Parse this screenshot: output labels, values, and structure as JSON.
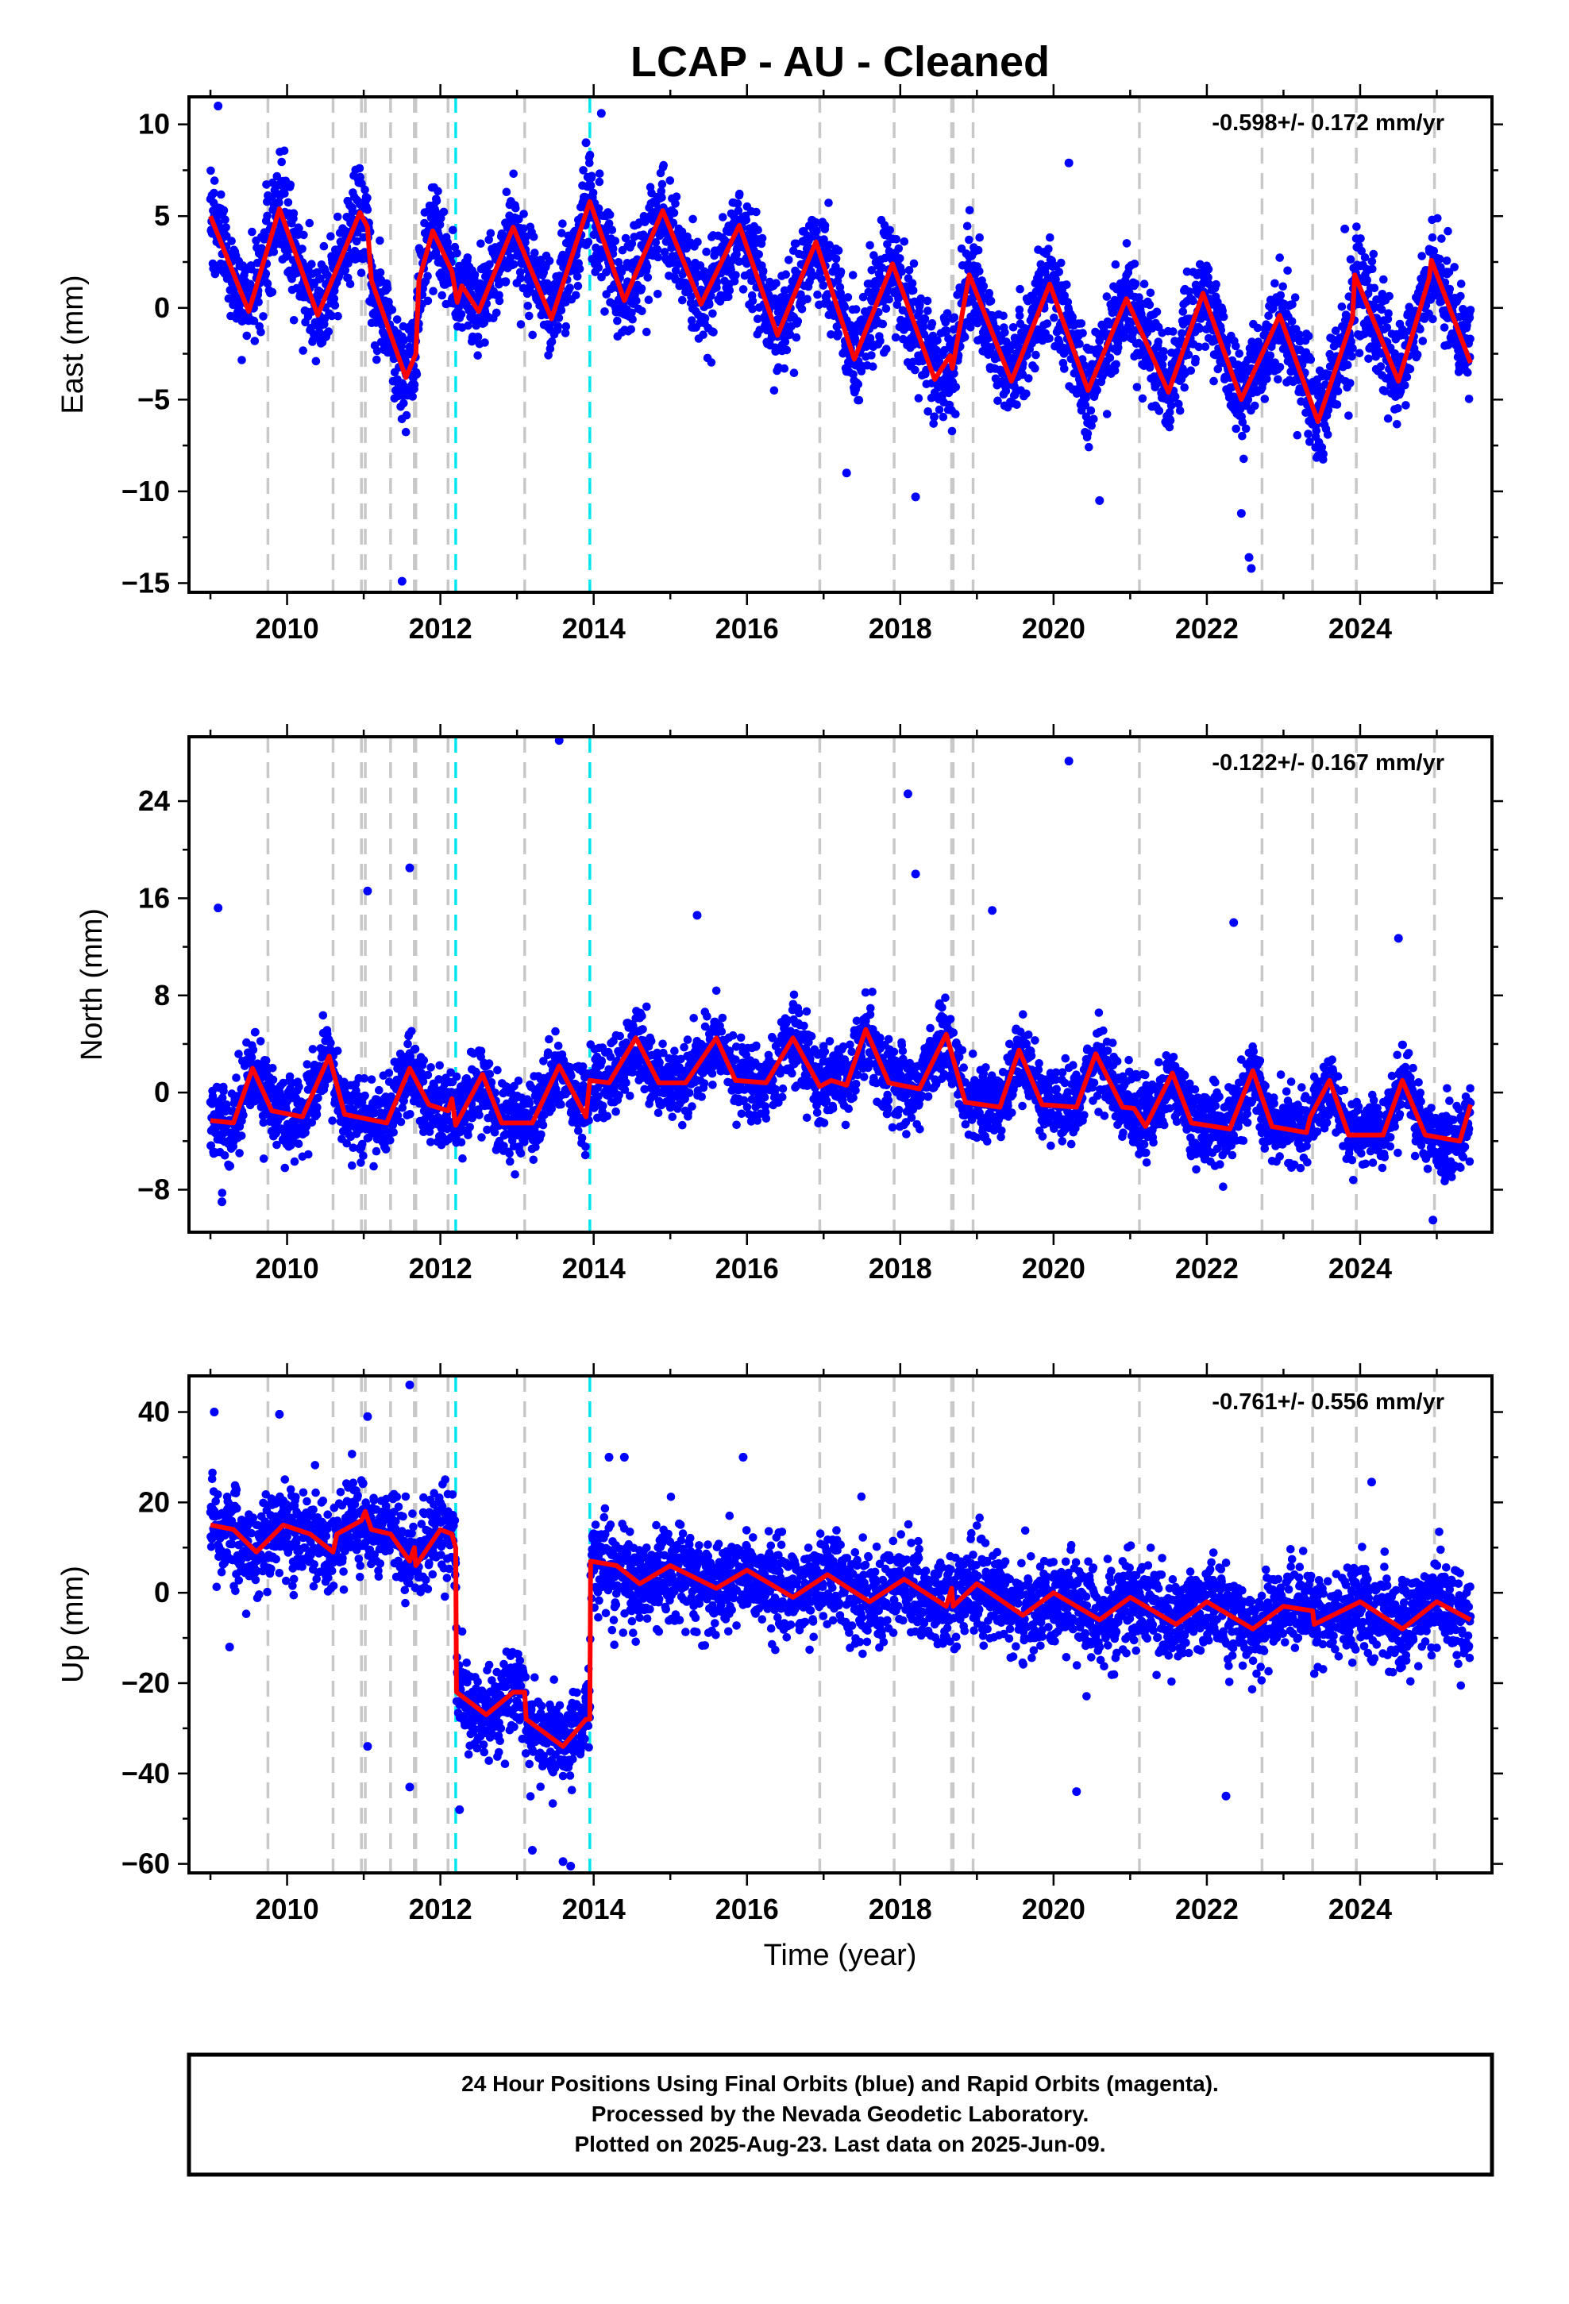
{
  "figure": {
    "title": "LCAP  - AU - Cleaned",
    "xlabel": "Time (year)",
    "footer": [
      "24 Hour Positions Using Final Orbits (blue) and Rapid Orbits (magenta).",
      "Processed by the Nevada Geodetic Laboratory.",
      "Plotted on 2025-Aug-23. Last data on 2025-Jun-09."
    ],
    "colors": {
      "observations": "#0000ff",
      "model": "#ff0000",
      "equipment_change": "#c8c8c8",
      "earthquake": "#00e5ee"
    }
  },
  "chart_data": [
    {
      "type": "scatter",
      "component": "East",
      "ylabel": "East (mm)",
      "rate_annotation": "-0.598+/- 0.172 mm/yr",
      "xlim": [
        2008.72,
        2025.72
      ],
      "ylim": [
        -15.5,
        11.5
      ],
      "x_ticks": [
        2010,
        2012,
        2014,
        2016,
        2018,
        2020,
        2022,
        2024
      ],
      "y_ticks": [
        10,
        5,
        0,
        -5,
        -10,
        -15
      ],
      "y_tick_labels": [
        "10",
        "5",
        "0",
        "−5",
        "−10",
        "−15"
      ],
      "grid": false,
      "series": [
        {
          "name": "Final Orbits (blue)",
          "kind": "daily_positions",
          "x_range": [
            2009.0,
            2025.44
          ],
          "model_params": {
            "offset": 4.4,
            "rate": -0.598,
            "annual_amplitude": 2.9,
            "phase_peak": 0.86,
            "scatter_sigma": 1.35
          },
          "outliers": [
            [
              2009.1,
              11.0
            ],
            [
              2011.5,
              -14.9
            ],
            [
              2013.9,
              9.0
            ],
            [
              2014.1,
              10.6
            ],
            [
              2017.3,
              -9.0
            ],
            [
              2018.2,
              -10.3
            ],
            [
              2020.2,
              7.9
            ],
            [
              2020.6,
              -10.5
            ],
            [
              2022.45,
              -11.2
            ],
            [
              2022.55,
              -13.6
            ],
            [
              2022.58,
              -14.2
            ],
            [
              2023.8,
              4.3
            ]
          ]
        },
        {
          "name": "Model",
          "kind": "model",
          "points": [
            [
              2009.0,
              5.0
            ],
            [
              2009.5,
              -0.2
            ],
            [
              2009.9,
              5.4
            ],
            [
              2010.4,
              -0.4
            ],
            [
              2010.95,
              5.2
            ],
            [
              2011.05,
              4.4
            ],
            [
              2011.1,
              1.5
            ],
            [
              2011.55,
              -3.8
            ],
            [
              2011.68,
              -2.5
            ],
            [
              2011.72,
              1.5
            ],
            [
              2011.9,
              4.2
            ],
            [
              2012.15,
              2.0
            ],
            [
              2012.22,
              0.3
            ],
            [
              2012.28,
              1.2
            ],
            [
              2012.5,
              -0.2
            ],
            [
              2012.95,
              4.4
            ],
            [
              2013.45,
              -0.6
            ],
            [
              2013.95,
              5.8
            ],
            [
              2014.4,
              0.4
            ],
            [
              2014.9,
              5.3
            ],
            [
              2015.4,
              0.2
            ],
            [
              2015.9,
              4.5
            ],
            [
              2016.4,
              -1.5
            ],
            [
              2016.9,
              3.6
            ],
            [
              2017.4,
              -2.8
            ],
            [
              2017.9,
              2.4
            ],
            [
              2018.45,
              -3.9
            ],
            [
              2018.65,
              -2.6
            ],
            [
              2018.68,
              -3.3
            ],
            [
              2018.9,
              1.8
            ],
            [
              2019.45,
              -4.0
            ],
            [
              2019.95,
              1.3
            ],
            [
              2020.45,
              -4.5
            ],
            [
              2020.95,
              0.5
            ],
            [
              2021.5,
              -4.6
            ],
            [
              2021.95,
              0.8
            ],
            [
              2022.45,
              -5.0
            ],
            [
              2022.95,
              -0.4
            ],
            [
              2023.45,
              -6.2
            ],
            [
              2023.9,
              -0.6
            ],
            [
              2023.93,
              1.8
            ],
            [
              2024.5,
              -4.0
            ],
            [
              2024.9,
              1.6
            ],
            [
              2024.93,
              2.6
            ],
            [
              2025.44,
              -3.0
            ]
          ]
        }
      ],
      "equipment_changes": [
        2009.75,
        2010.6,
        2010.97,
        2011.02,
        2011.35,
        2011.66,
        2011.68,
        2012.1,
        2013.1,
        2016.95,
        2017.92,
        2018.67,
        2018.69,
        2018.95,
        2021.12,
        2022.72,
        2023.38,
        2023.95,
        2024.97
      ],
      "earthquakes": [
        2012.2,
        2013.95
      ]
    },
    {
      "type": "scatter",
      "component": "North",
      "ylabel": "North (mm)",
      "rate_annotation": "-0.122+/- 0.167 mm/yr",
      "xlim": [
        2008.72,
        2025.72
      ],
      "ylim": [
        -11.5,
        29.3
      ],
      "x_ticks": [
        2010,
        2012,
        2014,
        2016,
        2018,
        2020,
        2022,
        2024
      ],
      "y_ticks": [
        24,
        16,
        8,
        0,
        -8
      ],
      "y_tick_labels": [
        "24",
        "16",
        "8",
        "0",
        "−8"
      ],
      "grid": false,
      "series": [
        {
          "name": "Final Orbits (blue)",
          "kind": "daily_positions",
          "x_range": [
            2009.0,
            2025.44
          ],
          "model_params": {
            "offset": -0.2,
            "rate": -0.122,
            "annual_amplitude": 2.2,
            "phase_peak": 0.55,
            "scatter_sigma": 1.5
          },
          "outliers": [
            [
              2009.1,
              15.2
            ],
            [
              2011.05,
              16.6
            ],
            [
              2011.6,
              18.5
            ],
            [
              2013.55,
              29.0
            ],
            [
              2015.35,
              14.6
            ],
            [
              2018.1,
              24.6
            ],
            [
              2018.2,
              18.0
            ],
            [
              2019.2,
              15.0
            ],
            [
              2020.2,
              27.3
            ],
            [
              2022.35,
              14.0
            ],
            [
              2024.5,
              12.7
            ],
            [
              2024.95,
              -10.5
            ],
            [
              2009.15,
              -9.0
            ]
          ]
        },
        {
          "name": "Model",
          "kind": "model",
          "points": [
            [
              2009.0,
              -2.3
            ],
            [
              2009.3,
              -2.5
            ],
            [
              2009.55,
              2.0
            ],
            [
              2009.8,
              -1.5
            ],
            [
              2010.2,
              -2.0
            ],
            [
              2010.55,
              3.0
            ],
            [
              2010.75,
              -1.8
            ],
            [
              2011.3,
              -2.5
            ],
            [
              2011.6,
              2.0
            ],
            [
              2011.85,
              -1.0
            ],
            [
              2012.1,
              -1.5
            ],
            [
              2012.15,
              -0.5
            ],
            [
              2012.2,
              -2.7
            ],
            [
              2012.55,
              1.5
            ],
            [
              2012.8,
              -2.5
            ],
            [
              2013.2,
              -2.5
            ],
            [
              2013.55,
              2.2
            ],
            [
              2013.9,
              -2.0
            ],
            [
              2013.95,
              1.0
            ],
            [
              2014.2,
              0.8
            ],
            [
              2014.55,
              4.5
            ],
            [
              2014.85,
              0.8
            ],
            [
              2015.2,
              0.8
            ],
            [
              2015.6,
              4.5
            ],
            [
              2015.85,
              1.0
            ],
            [
              2016.25,
              0.8
            ],
            [
              2016.6,
              4.5
            ],
            [
              2016.95,
              0.5
            ],
            [
              2017.1,
              1.0
            ],
            [
              2017.3,
              0.6
            ],
            [
              2017.55,
              5.2
            ],
            [
              2017.85,
              0.8
            ],
            [
              2018.25,
              0.3
            ],
            [
              2018.6,
              4.8
            ],
            [
              2018.85,
              -0.8
            ],
            [
              2019.3,
              -1.2
            ],
            [
              2019.55,
              3.5
            ],
            [
              2019.85,
              -1.0
            ],
            [
              2020.3,
              -1.2
            ],
            [
              2020.55,
              3.2
            ],
            [
              2020.9,
              -1.2
            ],
            [
              2021.05,
              -1.3
            ],
            [
              2021.2,
              -2.8
            ],
            [
              2021.55,
              1.6
            ],
            [
              2021.8,
              -2.5
            ],
            [
              2022.3,
              -3.0
            ],
            [
              2022.6,
              1.8
            ],
            [
              2022.85,
              -2.8
            ],
            [
              2023.3,
              -3.3
            ],
            [
              2023.35,
              -2.0
            ],
            [
              2023.6,
              1.0
            ],
            [
              2023.85,
              -3.5
            ],
            [
              2024.3,
              -3.5
            ],
            [
              2024.55,
              1.0
            ],
            [
              2024.85,
              -3.5
            ],
            [
              2025.3,
              -4.0
            ],
            [
              2025.44,
              -1.0
            ]
          ]
        }
      ],
      "equipment_changes": [
        2009.75,
        2010.6,
        2010.97,
        2011.02,
        2011.35,
        2011.66,
        2011.68,
        2012.1,
        2013.1,
        2016.95,
        2017.92,
        2018.67,
        2018.69,
        2018.95,
        2021.12,
        2022.72,
        2023.38,
        2023.95,
        2024.97
      ],
      "earthquakes": [
        2012.2,
        2013.95
      ]
    },
    {
      "type": "scatter",
      "component": "Up",
      "ylabel": "Up (mm)",
      "rate_annotation": "-0.761+/- 0.556 mm/yr",
      "xlim": [
        2008.72,
        2025.72
      ],
      "ylim": [
        -62,
        48
      ],
      "x_ticks": [
        2010,
        2012,
        2014,
        2016,
        2018,
        2020,
        2022,
        2024
      ],
      "y_ticks": [
        40,
        20,
        0,
        -20,
        -40,
        -60
      ],
      "y_tick_labels": [
        "40",
        "20",
        "0",
        "−20",
        "−40",
        "−60"
      ],
      "grid": false,
      "series": [
        {
          "name": "Final Orbits (blue)",
          "kind": "daily_positions",
          "x_range": [
            2009.0,
            2025.44
          ],
          "model_params": {
            "offset": 13.0,
            "rate": -0.761,
            "annual_amplitude": 3.5,
            "phase_peak": 0.05,
            "scatter_sigma": 5.0
          },
          "outliers": [
            [
              2009.05,
              40.0
            ],
            [
              2009.9,
              39.5
            ],
            [
              2011.05,
              39.0
            ],
            [
              2011.6,
              46.0
            ],
            [
              2011.05,
              -34.0
            ],
            [
              2011.6,
              -43.0
            ],
            [
              2012.25,
              -48.0
            ],
            [
              2013.2,
              -57.0
            ],
            [
              2013.6,
              -59.5
            ],
            [
              2013.7,
              -60.5
            ],
            [
              2014.2,
              30.0
            ],
            [
              2014.4,
              30.0
            ],
            [
              2015.95,
              30.0
            ],
            [
              2020.3,
              -44.0
            ],
            [
              2022.25,
              -45.0
            ],
            [
              2024.15,
              24.5
            ],
            [
              2009.25,
              -12.0
            ]
          ]
        },
        {
          "name": "Model",
          "kind": "model",
          "points": [
            [
              2009.0,
              15.0
            ],
            [
              2009.3,
              14.0
            ],
            [
              2009.6,
              9.0
            ],
            [
              2009.95,
              15.0
            ],
            [
              2010.3,
              13.0
            ],
            [
              2010.6,
              9.0
            ],
            [
              2010.65,
              13.0
            ],
            [
              2010.97,
              16.0
            ],
            [
              2011.02,
              18.0
            ],
            [
              2011.1,
              14.0
            ],
            [
              2011.35,
              13.0
            ],
            [
              2011.6,
              7.0
            ],
            [
              2011.66,
              10.0
            ],
            [
              2011.68,
              6.0
            ],
            [
              2012.0,
              14.0
            ],
            [
              2012.15,
              13.0
            ],
            [
              2012.2,
              10.0
            ],
            [
              2012.21,
              -22.0
            ],
            [
              2012.6,
              -27.0
            ],
            [
              2012.95,
              -22.0
            ],
            [
              2013.1,
              -22.0
            ],
            [
              2013.12,
              -28.0
            ],
            [
              2013.6,
              -34.0
            ],
            [
              2013.9,
              -28.0
            ],
            [
              2013.95,
              -28.0
            ],
            [
              2013.96,
              7.0
            ],
            [
              2014.3,
              6.0
            ],
            [
              2014.6,
              2.0
            ],
            [
              2015.0,
              6.0
            ],
            [
              2015.6,
              1.0
            ],
            [
              2016.0,
              5.0
            ],
            [
              2016.6,
              -1.0
            ],
            [
              2017.05,
              4.0
            ],
            [
              2017.6,
              -2.0
            ],
            [
              2018.05,
              3.0
            ],
            [
              2018.6,
              -3.0
            ],
            [
              2018.67,
              1.0
            ],
            [
              2018.69,
              -3.0
            ],
            [
              2019.0,
              2.0
            ],
            [
              2019.6,
              -5.0
            ],
            [
              2020.0,
              0.0
            ],
            [
              2020.6,
              -6.0
            ],
            [
              2021.0,
              -1.0
            ],
            [
              2021.6,
              -7.0
            ],
            [
              2022.0,
              -2.0
            ],
            [
              2022.6,
              -8.0
            ],
            [
              2023.0,
              -3.0
            ],
            [
              2023.38,
              -4.0
            ],
            [
              2023.4,
              -7.0
            ],
            [
              2024.0,
              -2.0
            ],
            [
              2024.55,
              -8.0
            ],
            [
              2025.0,
              -2.0
            ],
            [
              2025.44,
              -6.0
            ]
          ]
        }
      ],
      "equipment_changes": [
        2009.75,
        2010.6,
        2010.97,
        2011.02,
        2011.35,
        2011.66,
        2011.68,
        2012.1,
        2013.1,
        2016.95,
        2017.92,
        2018.67,
        2018.69,
        2018.95,
        2021.12,
        2022.72,
        2023.38,
        2023.95,
        2024.97
      ],
      "earthquakes": [
        2012.2,
        2013.95
      ]
    }
  ]
}
